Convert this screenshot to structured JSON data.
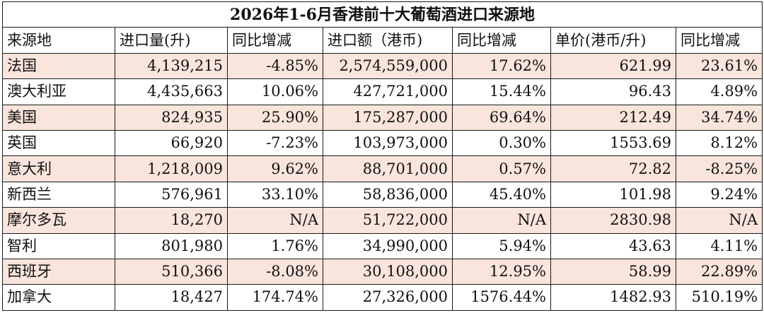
{
  "title": "2026年1-6月香港前十大葡萄酒进口来源地",
  "headers": [
    "来源地",
    "进口量(升)",
    "同比增减",
    "进口额（港币)",
    "同比增减",
    "单价(港币/升)",
    "同比增减"
  ],
  "rows": [
    {
      "country": "法国",
      "volume": "4,139,215",
      "volume_yoy": "-4.85%",
      "value": "2,574,559,000",
      "value_yoy": "17.62%",
      "price": "621.99",
      "price_yoy": "23.61%"
    },
    {
      "country": "澳大利亚",
      "volume": "4,435,663",
      "volume_yoy": "10.06%",
      "value": "427,721,000",
      "value_yoy": "15.44%",
      "price": "96.43",
      "price_yoy": "4.89%"
    },
    {
      "country": "美国",
      "volume": "824,935",
      "volume_yoy": "25.90%",
      "value": "175,287,000",
      "value_yoy": "69.64%",
      "price": "212.49",
      "price_yoy": "34.74%"
    },
    {
      "country": "英国",
      "volume": "66,920",
      "volume_yoy": "-7.23%",
      "value": "103,973,000",
      "value_yoy": "0.30%",
      "price": "1553.69",
      "price_yoy": "8.12%"
    },
    {
      "country": "意大利",
      "volume": "1,218,009",
      "volume_yoy": "9.62%",
      "value": "88,701,000",
      "value_yoy": "0.57%",
      "price": "72.82",
      "price_yoy": "-8.25%"
    },
    {
      "country": "新西兰",
      "volume": "576,961",
      "volume_yoy": "33.10%",
      "value": "58,836,000",
      "value_yoy": "45.40%",
      "price": "101.98",
      "price_yoy": "9.24%"
    },
    {
      "country": "摩尔多瓦",
      "volume": "18,270",
      "volume_yoy": "N/A",
      "value": "51,722,000",
      "value_yoy": "N/A",
      "price": "2830.98",
      "price_yoy": "N/A"
    },
    {
      "country": "智利",
      "volume": "801,980",
      "volume_yoy": "1.76%",
      "value": "34,990,000",
      "value_yoy": "5.94%",
      "price": "43.63",
      "price_yoy": "4.11%"
    },
    {
      "country": "西班牙",
      "volume": "510,366",
      "volume_yoy": "-8.08%",
      "value": "30,108,000",
      "value_yoy": "12.95%",
      "price": "58.99",
      "price_yoy": "22.89%"
    },
    {
      "country": "加拿大",
      "volume": "18,427",
      "volume_yoy": "174.74%",
      "value": "27,326,000",
      "value_yoy": "1576.44%",
      "price": "1482.93",
      "price_yoy": "510.19%"
    }
  ],
  "colors": {
    "shaded_row": "#f9e5dc",
    "plain_row": "#ffffff",
    "border": "#1a1a1a"
  }
}
